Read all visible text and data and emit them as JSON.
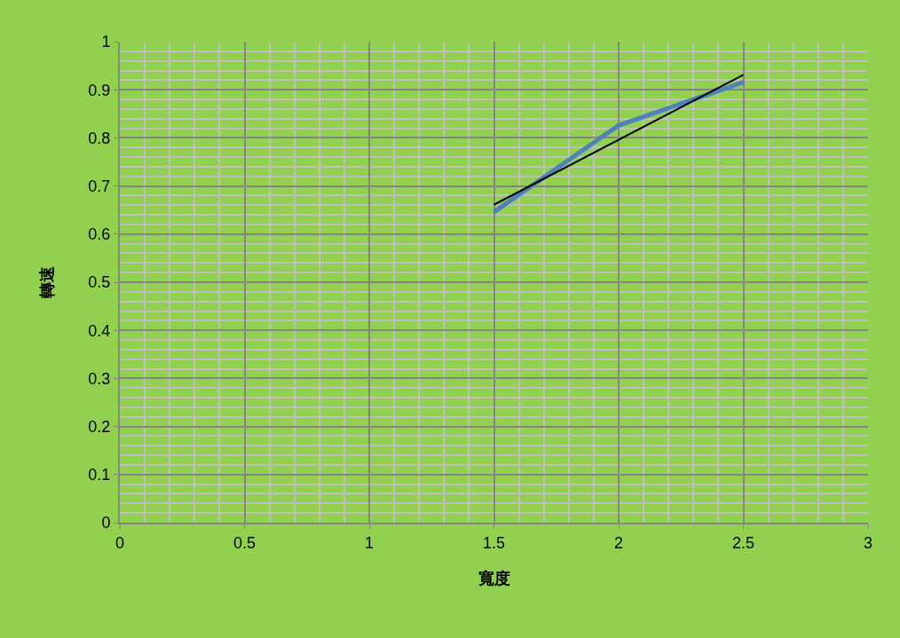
{
  "chart_data": {
    "type": "line",
    "xlabel": "寬度",
    "ylabel": "轉速",
    "x": [
      1.5,
      2,
      2.5
    ],
    "series": [
      {
        "color": "#4f81bd",
        "values": [
          0.646,
          0.826,
          0.916
        ]
      },
      {
        "type": "line",
        "color": "#000000",
        "x": [
          1.5,
          2.5
        ],
        "values": [
          0.661,
          0.931
        ]
      }
    ],
    "xlim": [
      0,
      3
    ],
    "xticks": [
      0,
      0.5,
      1,
      1.5,
      2,
      2.5,
      3
    ],
    "ylim": [
      0,
      1
    ],
    "yticks": [
      0,
      0.1,
      0.2,
      0.3,
      0.4,
      0.5,
      0.6,
      0.7,
      0.8,
      0.9,
      1
    ],
    "grid": true,
    "marker": "none",
    "line_style": "solid"
  }
}
